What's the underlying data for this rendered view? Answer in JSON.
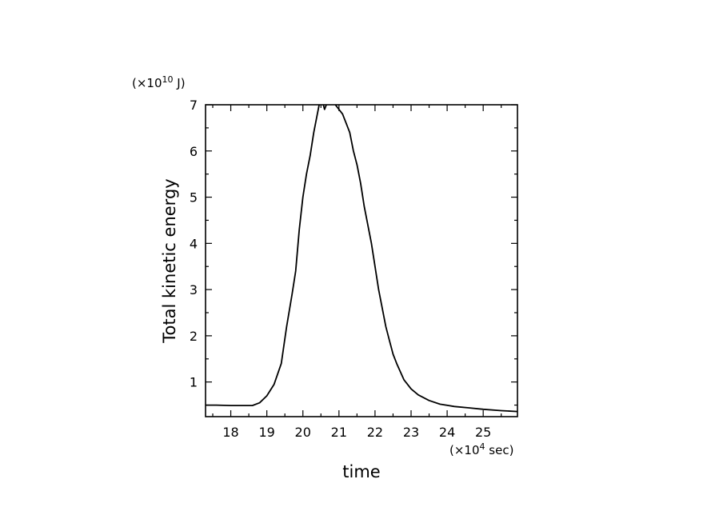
{
  "chart_data": {
    "type": "line",
    "xlabel": "time",
    "ylabel": "Total kinetic energy",
    "x_unit": {
      "prefix": "(×10",
      "exp": "4",
      "suffix": " sec)"
    },
    "y_unit": {
      "prefix": "(×10",
      "exp": "10",
      "suffix": " J)"
    },
    "xlim": [
      17.3,
      25.95
    ],
    "ylim": [
      0.25,
      7.0
    ],
    "xticks": [
      18,
      19,
      20,
      21,
      22,
      23,
      24,
      25
    ],
    "yticks": [
      1,
      2,
      3,
      4,
      5,
      6,
      7
    ],
    "grid": false,
    "series": [
      {
        "color": "#000000",
        "x": [
          17.3,
          17.6,
          18.0,
          18.3,
          18.6,
          18.8,
          19.0,
          19.2,
          19.4,
          19.55,
          19.7,
          19.8,
          19.9,
          20.0,
          20.1,
          20.2,
          20.3,
          20.4,
          20.5,
          20.6,
          20.7,
          20.8,
          20.9,
          21.0,
          21.1,
          21.2,
          21.3,
          21.4,
          21.5,
          21.6,
          21.7,
          21.8,
          21.9,
          22.0,
          22.1,
          22.2,
          22.3,
          22.4,
          22.5,
          22.6,
          22.8,
          23.0,
          23.2,
          23.5,
          23.8,
          24.2,
          24.6,
          25.0,
          25.5,
          25.95
        ],
        "y": [
          0.5,
          0.5,
          0.49,
          0.49,
          0.49,
          0.55,
          0.7,
          0.95,
          1.4,
          2.2,
          2.9,
          3.4,
          4.3,
          5.0,
          5.5,
          5.9,
          6.4,
          6.8,
          7.2,
          6.9,
          7.1,
          7.3,
          7.0,
          6.9,
          6.8,
          6.6,
          6.4,
          6.0,
          5.7,
          5.3,
          4.8,
          4.4,
          4.0,
          3.5,
          3.0,
          2.6,
          2.2,
          1.9,
          1.6,
          1.4,
          1.05,
          0.85,
          0.72,
          0.6,
          0.52,
          0.47,
          0.44,
          0.41,
          0.38,
          0.36
        ]
      }
    ]
  }
}
